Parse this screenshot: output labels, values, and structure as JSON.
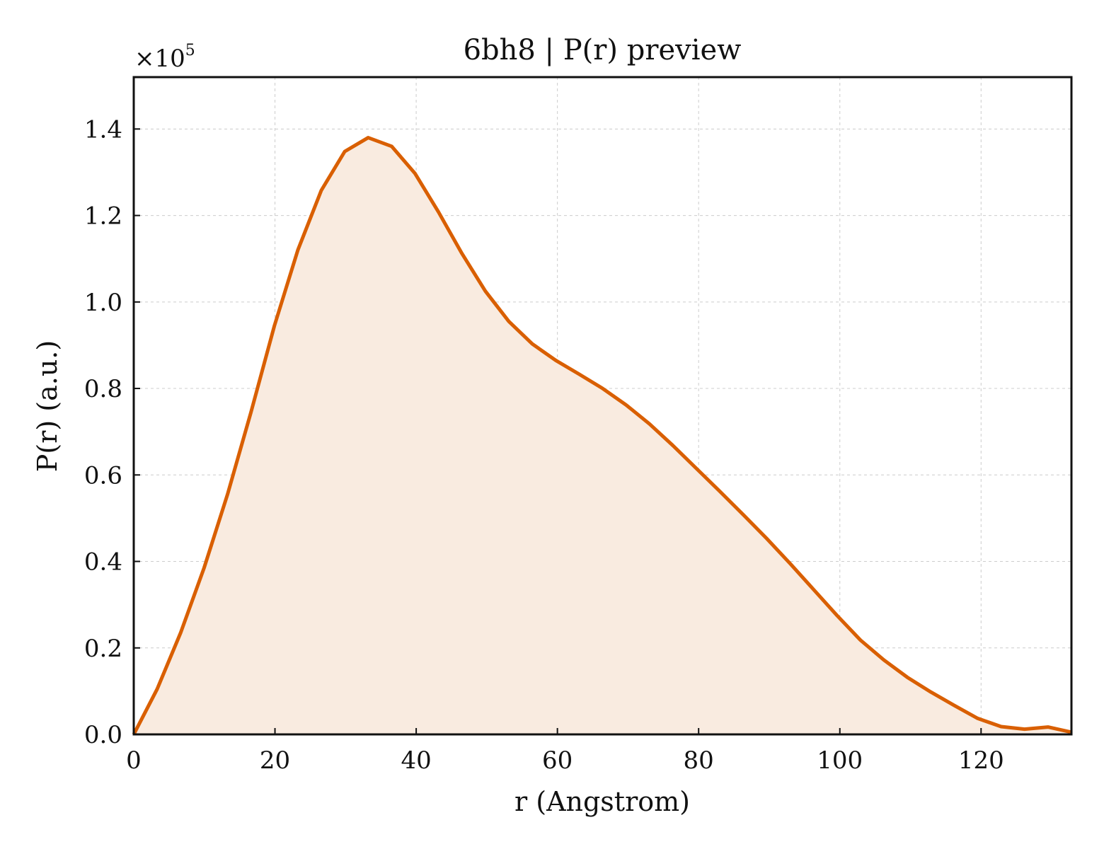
{
  "chart_data": {
    "type": "area",
    "title": "6bh8 | P(r) preview",
    "xlabel": "r (Angstrom)",
    "ylabel": "P(r) (a.u.)",
    "y_multiplier": {
      "base": "×10",
      "exponent": "5"
    },
    "xlim": [
      0,
      132.8
    ],
    "ylim": [
      0,
      1.52
    ],
    "x_ticks": [
      0,
      20,
      40,
      60,
      80,
      100,
      120
    ],
    "y_ticks": [
      0.0,
      0.2,
      0.4,
      0.6,
      0.8,
      1.0,
      1.2,
      1.4
    ],
    "x_tick_labels": [
      "0",
      "20",
      "40",
      "60",
      "80",
      "100",
      "120"
    ],
    "y_tick_labels": [
      "0.0",
      "0.2",
      "0.4",
      "0.6",
      "0.8",
      "1.0",
      "1.2",
      "1.4"
    ],
    "grid": true,
    "line_color": "#d95f02",
    "fill_color": "#f9ebe0",
    "x": [
      0,
      3.32,
      6.64,
      9.96,
      13.28,
      16.6,
      19.92,
      23.24,
      26.56,
      29.88,
      33.2,
      36.52,
      39.84,
      43.16,
      46.48,
      49.8,
      53.12,
      56.44,
      59.76,
      63.08,
      66.4,
      69.72,
      73.04,
      76.36,
      79.68,
      83.0,
      86.32,
      89.64,
      92.96,
      96.28,
      99.6,
      102.92,
      106.24,
      109.56,
      112.88,
      116.2,
      119.52,
      122.84,
      126.16,
      129.48,
      132.8
    ],
    "y": [
      0.0,
      0.105,
      0.235,
      0.385,
      0.555,
      0.745,
      0.945,
      1.12,
      1.258,
      1.348,
      1.38,
      1.36,
      1.297,
      1.208,
      1.112,
      1.025,
      0.955,
      0.903,
      0.865,
      0.833,
      0.8,
      0.762,
      0.718,
      0.668,
      0.615,
      0.562,
      0.508,
      0.453,
      0.395,
      0.335,
      0.275,
      0.218,
      0.172,
      0.132,
      0.098,
      0.067,
      0.037,
      0.018,
      0.012,
      0.017,
      0.005
    ]
  }
}
